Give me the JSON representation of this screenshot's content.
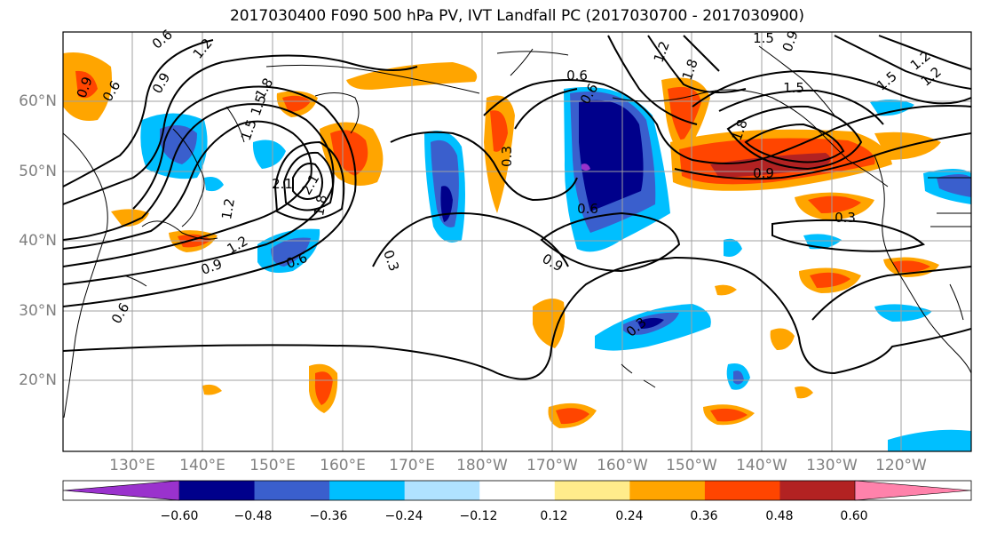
{
  "title": "2017030400 F090 500 hPa PV, IVT Landfall PC (2017030700 - 2017030900)",
  "lat_labels": [
    "60°N",
    "50°N",
    "40°N",
    "30°N",
    "20°N"
  ],
  "lon_labels": [
    "130°E",
    "140°E",
    "150°E",
    "160°E",
    "170°E",
    "180°W",
    "170°W",
    "160°W",
    "150°W",
    "140°W",
    "130°W",
    "120°W"
  ],
  "colorbar": {
    "colors": [
      "#9a32cd",
      "#00008b",
      "#3a5fcd",
      "#00bfff",
      "#b0e2ff",
      "#ffffff",
      "#ffec8b",
      "#ffa500",
      "#ff4500",
      "#b22222",
      "#ff82ab"
    ],
    "tick_labels": [
      "−0.60",
      "−0.48",
      "−0.36",
      "−0.24",
      "−0.12",
      "0.12",
      "0.24",
      "0.36",
      "0.48",
      "0.60"
    ]
  },
  "contour_labels": [
    "0.6",
    "0.9",
    "1.2",
    "1.5",
    "1.8",
    "2.1",
    "0.3",
    "0.6",
    "0.9",
    "1.2",
    "1.5",
    "1.8",
    "2.1",
    "0.9",
    "0.6",
    "0.3",
    "0.6",
    "0.9",
    "1.2",
    "0.6",
    "0.9",
    "0.3",
    "0.3",
    "0.6",
    "0.9",
    "1.2",
    "1.5",
    "1.8",
    "1.2",
    "1.5",
    "1.8",
    "1.2",
    "0.6",
    "1.5"
  ]
}
